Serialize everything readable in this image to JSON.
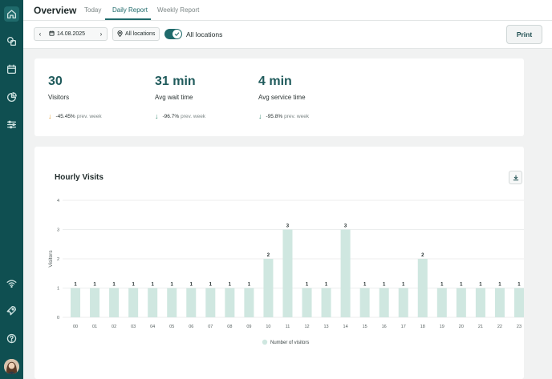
{
  "sidebar": {
    "icons": [
      "home-icon",
      "shapes-icon",
      "calendar-icon",
      "pie-chart-icon",
      "sliders-icon",
      "wifi-icon",
      "rocket-icon",
      "help-icon"
    ]
  },
  "header": {
    "title": "Overview",
    "tabs": [
      {
        "label": "Today",
        "active": false
      },
      {
        "label": "Daily Report",
        "active": true
      },
      {
        "label": "Weekly Report",
        "active": false
      }
    ]
  },
  "filters": {
    "date": "14.08.2025",
    "location_button": "All locations",
    "toggle_on": true,
    "toggle_label": "All locations",
    "print_label": "Print"
  },
  "stats": [
    {
      "value": "30",
      "label": "Visitors",
      "change": "-45.45%",
      "suffix": "prev. week",
      "arrow_color": "#e0a13a"
    },
    {
      "value": "31 min",
      "label": "Avg wait time",
      "change": "-96.7%",
      "suffix": "prev. week",
      "arrow_color": "#3e8e76"
    },
    {
      "value": "4 min",
      "label": "Avg service time",
      "change": "-95.8%",
      "suffix": "prev. week",
      "arrow_color": "#3e8e76"
    }
  ],
  "colors": {
    "accent": "#1f6a6b",
    "sidebar": "#0f4f51",
    "bar": "#cfe7e0"
  },
  "chart_data": {
    "type": "bar",
    "title": "Hourly Visits",
    "ylabel": "Visitors",
    "xlabel": "",
    "ylim": [
      0,
      4
    ],
    "yticks": [
      "0",
      "1",
      "2",
      "3",
      "4"
    ],
    "categories": [
      "00",
      "01",
      "02",
      "03",
      "04",
      "05",
      "06",
      "07",
      "08",
      "09",
      "10",
      "11",
      "12",
      "13",
      "14",
      "15",
      "16",
      "17",
      "18",
      "19",
      "20",
      "21",
      "22",
      "23"
    ],
    "series": [
      {
        "name": "Number of visitors",
        "values": [
          1,
          1,
          1,
          1,
          1,
          1,
          1,
          1,
          1,
          1,
          2,
          3,
          1,
          1,
          3,
          1,
          1,
          1,
          2,
          1,
          1,
          1,
          1,
          1
        ]
      }
    ],
    "data_labels": true,
    "grid": true,
    "legend": "bottom"
  }
}
